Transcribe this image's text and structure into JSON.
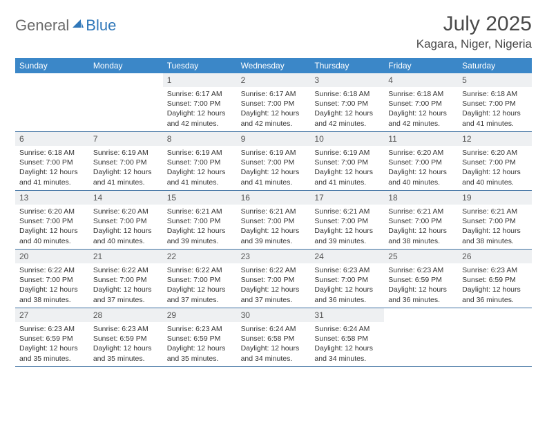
{
  "logo": {
    "text_general": "General",
    "text_blue": "Blue",
    "icon_fill": "#2f77b9"
  },
  "title": {
    "month_year": "July 2025",
    "location": "Kagara, Niger, Nigeria"
  },
  "colors": {
    "header_bg": "#3b87c8",
    "header_text": "#ffffff",
    "daynum_bg": "#eef0f2",
    "week_border": "#3b6fa0"
  },
  "day_names": [
    "Sunday",
    "Monday",
    "Tuesday",
    "Wednesday",
    "Thursday",
    "Friday",
    "Saturday"
  ],
  "weeks": [
    [
      {
        "empty": true
      },
      {
        "empty": true
      },
      {
        "day": "1",
        "sunrise": "Sunrise: 6:17 AM",
        "sunset": "Sunset: 7:00 PM",
        "daylight1": "Daylight: 12 hours",
        "daylight2": "and 42 minutes."
      },
      {
        "day": "2",
        "sunrise": "Sunrise: 6:17 AM",
        "sunset": "Sunset: 7:00 PM",
        "daylight1": "Daylight: 12 hours",
        "daylight2": "and 42 minutes."
      },
      {
        "day": "3",
        "sunrise": "Sunrise: 6:18 AM",
        "sunset": "Sunset: 7:00 PM",
        "daylight1": "Daylight: 12 hours",
        "daylight2": "and 42 minutes."
      },
      {
        "day": "4",
        "sunrise": "Sunrise: 6:18 AM",
        "sunset": "Sunset: 7:00 PM",
        "daylight1": "Daylight: 12 hours",
        "daylight2": "and 42 minutes."
      },
      {
        "day": "5",
        "sunrise": "Sunrise: 6:18 AM",
        "sunset": "Sunset: 7:00 PM",
        "daylight1": "Daylight: 12 hours",
        "daylight2": "and 41 minutes."
      }
    ],
    [
      {
        "day": "6",
        "sunrise": "Sunrise: 6:18 AM",
        "sunset": "Sunset: 7:00 PM",
        "daylight1": "Daylight: 12 hours",
        "daylight2": "and 41 minutes."
      },
      {
        "day": "7",
        "sunrise": "Sunrise: 6:19 AM",
        "sunset": "Sunset: 7:00 PM",
        "daylight1": "Daylight: 12 hours",
        "daylight2": "and 41 minutes."
      },
      {
        "day": "8",
        "sunrise": "Sunrise: 6:19 AM",
        "sunset": "Sunset: 7:00 PM",
        "daylight1": "Daylight: 12 hours",
        "daylight2": "and 41 minutes."
      },
      {
        "day": "9",
        "sunrise": "Sunrise: 6:19 AM",
        "sunset": "Sunset: 7:00 PM",
        "daylight1": "Daylight: 12 hours",
        "daylight2": "and 41 minutes."
      },
      {
        "day": "10",
        "sunrise": "Sunrise: 6:19 AM",
        "sunset": "Sunset: 7:00 PM",
        "daylight1": "Daylight: 12 hours",
        "daylight2": "and 41 minutes."
      },
      {
        "day": "11",
        "sunrise": "Sunrise: 6:20 AM",
        "sunset": "Sunset: 7:00 PM",
        "daylight1": "Daylight: 12 hours",
        "daylight2": "and 40 minutes."
      },
      {
        "day": "12",
        "sunrise": "Sunrise: 6:20 AM",
        "sunset": "Sunset: 7:00 PM",
        "daylight1": "Daylight: 12 hours",
        "daylight2": "and 40 minutes."
      }
    ],
    [
      {
        "day": "13",
        "sunrise": "Sunrise: 6:20 AM",
        "sunset": "Sunset: 7:00 PM",
        "daylight1": "Daylight: 12 hours",
        "daylight2": "and 40 minutes."
      },
      {
        "day": "14",
        "sunrise": "Sunrise: 6:20 AM",
        "sunset": "Sunset: 7:00 PM",
        "daylight1": "Daylight: 12 hours",
        "daylight2": "and 40 minutes."
      },
      {
        "day": "15",
        "sunrise": "Sunrise: 6:21 AM",
        "sunset": "Sunset: 7:00 PM",
        "daylight1": "Daylight: 12 hours",
        "daylight2": "and 39 minutes."
      },
      {
        "day": "16",
        "sunrise": "Sunrise: 6:21 AM",
        "sunset": "Sunset: 7:00 PM",
        "daylight1": "Daylight: 12 hours",
        "daylight2": "and 39 minutes."
      },
      {
        "day": "17",
        "sunrise": "Sunrise: 6:21 AM",
        "sunset": "Sunset: 7:00 PM",
        "daylight1": "Daylight: 12 hours",
        "daylight2": "and 39 minutes."
      },
      {
        "day": "18",
        "sunrise": "Sunrise: 6:21 AM",
        "sunset": "Sunset: 7:00 PM",
        "daylight1": "Daylight: 12 hours",
        "daylight2": "and 38 minutes."
      },
      {
        "day": "19",
        "sunrise": "Sunrise: 6:21 AM",
        "sunset": "Sunset: 7:00 PM",
        "daylight1": "Daylight: 12 hours",
        "daylight2": "and 38 minutes."
      }
    ],
    [
      {
        "day": "20",
        "sunrise": "Sunrise: 6:22 AM",
        "sunset": "Sunset: 7:00 PM",
        "daylight1": "Daylight: 12 hours",
        "daylight2": "and 38 minutes."
      },
      {
        "day": "21",
        "sunrise": "Sunrise: 6:22 AM",
        "sunset": "Sunset: 7:00 PM",
        "daylight1": "Daylight: 12 hours",
        "daylight2": "and 37 minutes."
      },
      {
        "day": "22",
        "sunrise": "Sunrise: 6:22 AM",
        "sunset": "Sunset: 7:00 PM",
        "daylight1": "Daylight: 12 hours",
        "daylight2": "and 37 minutes."
      },
      {
        "day": "23",
        "sunrise": "Sunrise: 6:22 AM",
        "sunset": "Sunset: 7:00 PM",
        "daylight1": "Daylight: 12 hours",
        "daylight2": "and 37 minutes."
      },
      {
        "day": "24",
        "sunrise": "Sunrise: 6:23 AM",
        "sunset": "Sunset: 7:00 PM",
        "daylight1": "Daylight: 12 hours",
        "daylight2": "and 36 minutes."
      },
      {
        "day": "25",
        "sunrise": "Sunrise: 6:23 AM",
        "sunset": "Sunset: 6:59 PM",
        "daylight1": "Daylight: 12 hours",
        "daylight2": "and 36 minutes."
      },
      {
        "day": "26",
        "sunrise": "Sunrise: 6:23 AM",
        "sunset": "Sunset: 6:59 PM",
        "daylight1": "Daylight: 12 hours",
        "daylight2": "and 36 minutes."
      }
    ],
    [
      {
        "day": "27",
        "sunrise": "Sunrise: 6:23 AM",
        "sunset": "Sunset: 6:59 PM",
        "daylight1": "Daylight: 12 hours",
        "daylight2": "and 35 minutes."
      },
      {
        "day": "28",
        "sunrise": "Sunrise: 6:23 AM",
        "sunset": "Sunset: 6:59 PM",
        "daylight1": "Daylight: 12 hours",
        "daylight2": "and 35 minutes."
      },
      {
        "day": "29",
        "sunrise": "Sunrise: 6:23 AM",
        "sunset": "Sunset: 6:59 PM",
        "daylight1": "Daylight: 12 hours",
        "daylight2": "and 35 minutes."
      },
      {
        "day": "30",
        "sunrise": "Sunrise: 6:24 AM",
        "sunset": "Sunset: 6:58 PM",
        "daylight1": "Daylight: 12 hours",
        "daylight2": "and 34 minutes."
      },
      {
        "day": "31",
        "sunrise": "Sunrise: 6:24 AM",
        "sunset": "Sunset: 6:58 PM",
        "daylight1": "Daylight: 12 hours",
        "daylight2": "and 34 minutes."
      },
      {
        "empty": true
      },
      {
        "empty": true
      }
    ]
  ]
}
